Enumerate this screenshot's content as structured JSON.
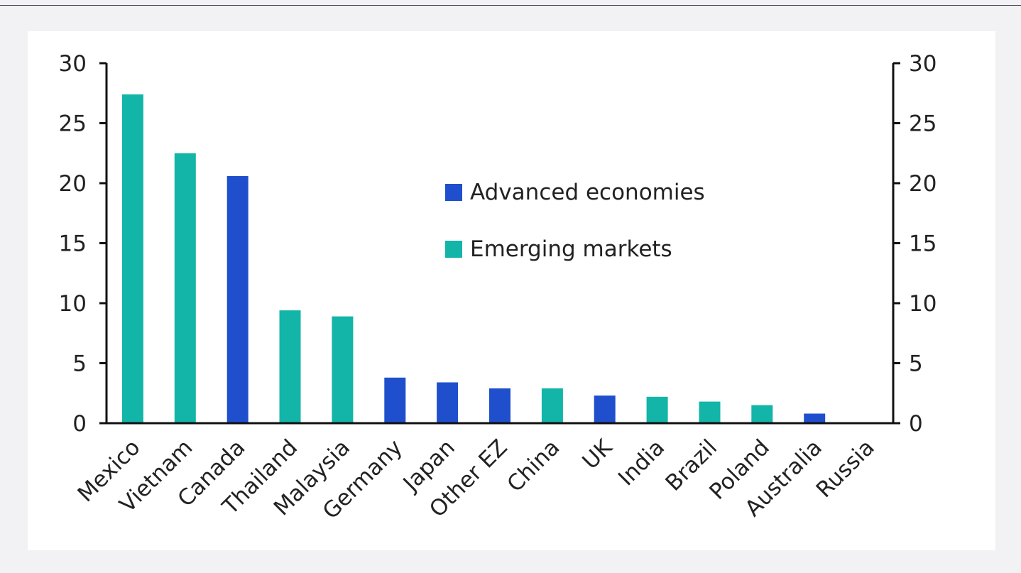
{
  "chart_data": {
    "type": "bar",
    "categories": [
      "Mexico",
      "Vietnam",
      "Canada",
      "Thailand",
      "Malaysia",
      "Germany",
      "Japan",
      "Other EZ",
      "China",
      "UK",
      "India",
      "Brazil",
      "Poland",
      "Australia",
      "Russia"
    ],
    "values": [
      27.4,
      22.5,
      20.6,
      9.4,
      8.9,
      3.8,
      3.4,
      2.9,
      2.9,
      2.3,
      2.2,
      1.8,
      1.5,
      0.8,
      0.0
    ],
    "groups": [
      "Emerging markets",
      "Emerging markets",
      "Advanced economies",
      "Emerging markets",
      "Emerging markets",
      "Advanced economies",
      "Advanced economies",
      "Advanced economies",
      "Emerging markets",
      "Advanced economies",
      "Emerging markets",
      "Emerging markets",
      "Emerging markets",
      "Advanced economies",
      "Emerging markets"
    ],
    "legend": [
      {
        "name": "Advanced economies",
        "color": "#1f4fcc"
      },
      {
        "name": "Emerging markets",
        "color": "#12b5a7"
      }
    ],
    "legend_position": "upper-middle",
    "ylim": [
      0,
      30
    ],
    "yticks": [
      "0",
      "5",
      "10",
      "15",
      "20",
      "25",
      "30"
    ],
    "secondary_yticks": [
      "0",
      "5",
      "10",
      "15",
      "20",
      "25",
      "30"
    ],
    "title": "",
    "xlabel": "",
    "ylabel": "",
    "grid": false
  }
}
